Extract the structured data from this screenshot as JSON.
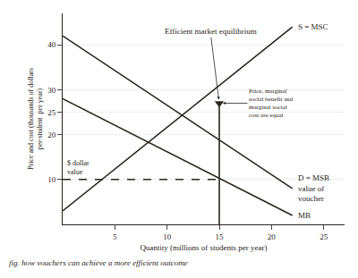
{
  "chart_data": {
    "type": "line",
    "xlabel": "Quantity (millions of students per year)",
    "ylabel": "Price and cost (thousands of dollars\nper-student  per year)",
    "xlim": [
      0,
      27
    ],
    "ylim": [
      0,
      47
    ],
    "xticks": [
      5,
      10,
      15,
      20,
      25
    ],
    "yticks": [
      10,
      20,
      25,
      30,
      40
    ],
    "grid": "y",
    "color": "#2a2520",
    "series": [
      {
        "x": [
          0,
          22
        ],
        "values": [
          3,
          44
        ]
      },
      {
        "x": [
          0,
          22
        ],
        "values": [
          42,
          8
        ]
      },
      {
        "x": [
          0,
          22
        ],
        "values": [
          28,
          2
        ]
      },
      {
        "x": [
          0,
          15
        ],
        "values": [
          10,
          10
        ],
        "line_style": "dashed"
      },
      {
        "x": [
          15,
          15
        ],
        "values": [
          0,
          27
        ]
      },
      {
        "x": [
          15
        ],
        "values": [
          27
        ],
        "type": "scatter",
        "marker": "triangle-down"
      }
    ],
    "annotations": [
      "S = MSC",
      "D = MSB\nvalue of\nvoucher",
      "MB",
      "$ dollar\nvalue",
      "Price, marginal\nsocial benefit and\nmarginal social\ncost are equal",
      "Efficient market equilibrium",
      "fig. how vouchers can achieve a more efficient outcome"
    ]
  }
}
